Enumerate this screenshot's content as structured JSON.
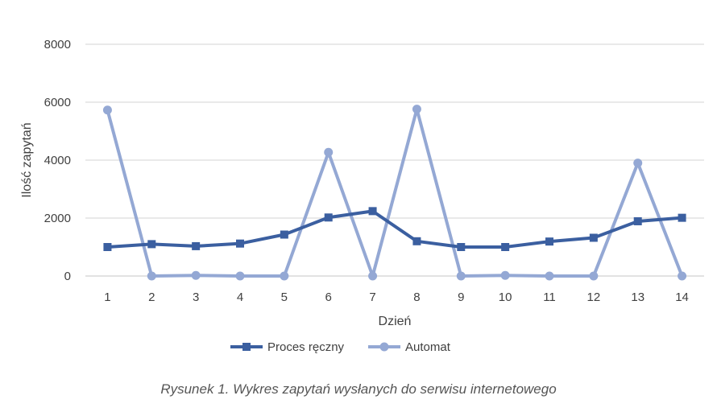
{
  "chart_data": {
    "type": "line",
    "x": [
      1,
      2,
      3,
      4,
      5,
      6,
      7,
      8,
      9,
      10,
      11,
      12,
      13,
      14
    ],
    "xlabel": "Dzień",
    "ylabel": "Ilość zapytań",
    "ylim": [
      0,
      8000
    ],
    "yticks": [
      0,
      2000,
      4000,
      6000,
      8000
    ],
    "grid": true,
    "legend_position": "bottom",
    "series": [
      {
        "name": "Proces ręczny",
        "color": "#3b5fa0",
        "marker": "square",
        "values": [
          1000,
          1100,
          1030,
          1120,
          1430,
          2020,
          2240,
          1200,
          1000,
          1000,
          1190,
          1320,
          1890,
          2010
        ]
      },
      {
        "name": "Automat",
        "color": "#94a8d4",
        "marker": "circle",
        "values": [
          5730,
          0,
          20,
          0,
          0,
          4270,
          0,
          5760,
          0,
          20,
          0,
          0,
          3900,
          0
        ]
      }
    ]
  },
  "caption": "Rysunek 1. Wykres zapytań wysłanych do serwisu internetowego"
}
